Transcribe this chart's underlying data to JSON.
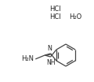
{
  "bg_color": "#ffffff",
  "line_color": "#444444",
  "text_color": "#222222",
  "hcl1": "HCl",
  "hcl2": "HCl",
  "h2o": "H₂O",
  "nh2": "H₂N",
  "nh": "NH",
  "n_label": "N",
  "figsize": [
    1.2,
    1.04
  ],
  "dpi": 100
}
